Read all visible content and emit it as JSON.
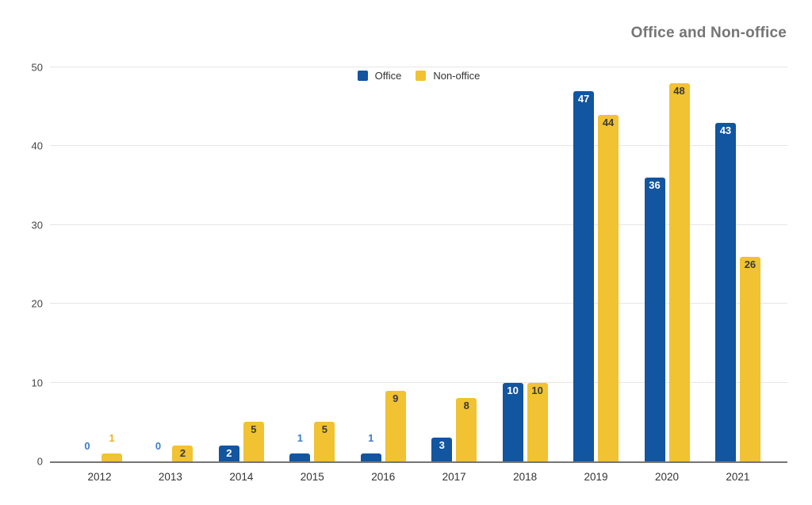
{
  "chart_data": {
    "type": "bar",
    "title": "Office and Non-office",
    "title_color": "#757575",
    "categories": [
      "2012",
      "2013",
      "2014",
      "2015",
      "2016",
      "2017",
      "2018",
      "2019",
      "2020",
      "2021"
    ],
    "series": [
      {
        "name": "Office",
        "color": "#1255A0",
        "inside_label_color": "#ffffff",
        "outside_label_color": "#3E7CC7",
        "values": [
          0,
          0,
          2,
          1,
          1,
          3,
          10,
          47,
          36,
          43
        ]
      },
      {
        "name": "Non-office",
        "color": "#F1C232",
        "inside_label_color": "#3A3A3A",
        "outside_label_color": "#F0B225",
        "values": [
          1,
          2,
          5,
          5,
          9,
          8,
          10,
          44,
          48,
          26
        ]
      }
    ],
    "xlabel": "",
    "ylabel": "",
    "ylim": [
      0,
      50
    ],
    "yticks": [
      0,
      10,
      20,
      30,
      40,
      50
    ],
    "grid": true,
    "legend_position": "top-center",
    "gridline_color": "#e6e6e6",
    "axis_line_color": "#757575",
    "y_tick_label_color": "#444444",
    "x_tick_label_color": "#333333"
  }
}
